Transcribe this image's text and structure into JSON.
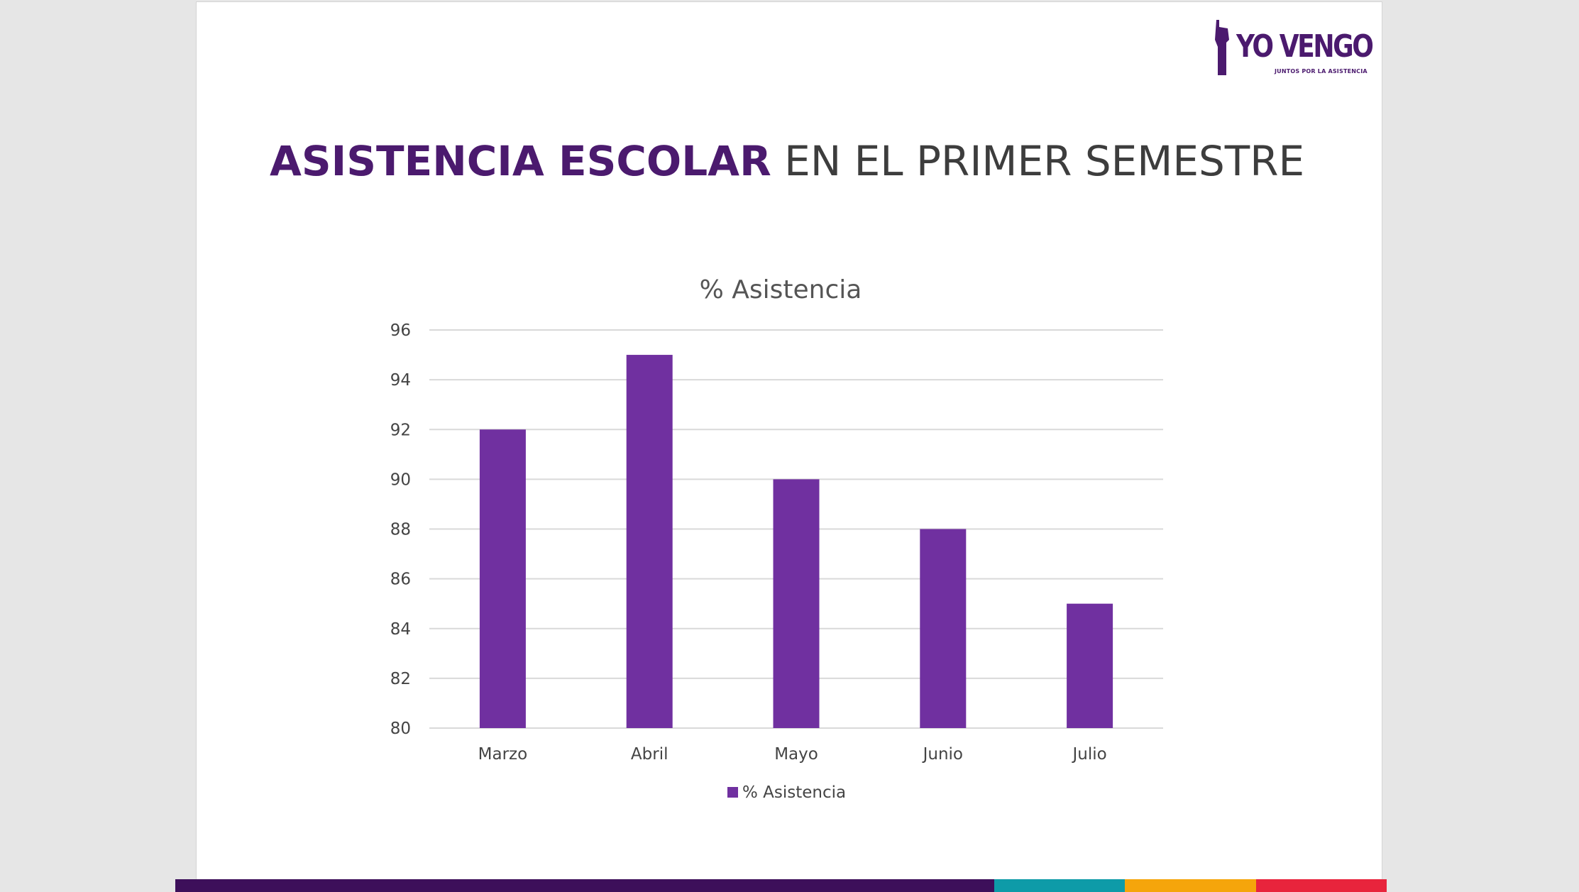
{
  "logo": {
    "word": "YO VENGO",
    "tagline": "JUNTOS POR LA ASISTENCIA"
  },
  "slide_title": {
    "bold": "ASISTENCIA ESCOLAR",
    "rest": "EN EL PRIMER SEMESTRE"
  },
  "chart_data": {
    "type": "bar",
    "title": "% Asistencia",
    "categories": [
      "Marzo",
      "Abril",
      "Mayo",
      "Junio",
      "Julio"
    ],
    "series": [
      {
        "name": "% Asistencia",
        "values": [
          92,
          95,
          90,
          88,
          85
        ]
      }
    ],
    "yticks": [
      "80",
      "82",
      "84",
      "86",
      "88",
      "90",
      "92",
      "94",
      "96"
    ],
    "ylim": [
      80,
      96
    ],
    "grid": true,
    "legend": "bottom",
    "color": "#7030a0"
  },
  "colors": {
    "brand_purple": "#4b1a6e",
    "bar": "#7030a0",
    "footer": [
      "#3d0f5a",
      "#0e9ba8",
      "#f5a50b",
      "#e8243c"
    ]
  }
}
